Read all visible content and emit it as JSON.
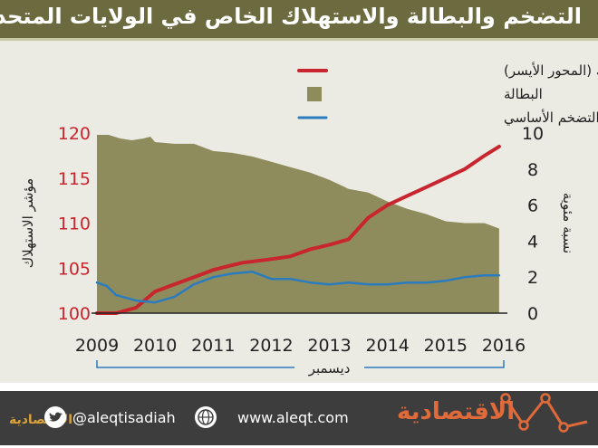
{
  "title": "التضخم والبطالة والاستهلاك الخاص في الولايات المتحدة",
  "footer": {
    "twitter": "@aleqtisadiah",
    "website": "www.aleqt.com",
    "brand": "الاقتصادية",
    "brand_small": "الاقتصادية"
  },
  "chart_data": {
    "type": "line",
    "x_axis": {
      "ticks": [
        "2009",
        "2010",
        "2011",
        "2012",
        "2013",
        "2014",
        "2015",
        "2016"
      ],
      "range": [
        2009,
        2016
      ],
      "sublabel": "ديسمبر"
    },
    "y_left": {
      "label": "مؤشر الاستهلاك",
      "range": [
        100,
        120
      ],
      "ticks": [
        "100",
        "105",
        "110",
        "115",
        "120"
      ]
    },
    "y_right": {
      "label": "نسبة مئوية",
      "range": [
        0,
        10
      ],
      "ticks": [
        "0",
        "2",
        "4",
        "6",
        "8",
        "10"
      ]
    },
    "legend_position": "top-right",
    "grid": false,
    "series": [
      {
        "name": "الاستهلاك (المحور الأيسر)",
        "kind": "line",
        "axis": "left",
        "color": "#c8252f",
        "x": [
          2009.0,
          2009.33,
          2009.67,
          2010.0,
          2010.33,
          2010.67,
          2011.0,
          2011.5,
          2012.0,
          2012.33,
          2012.67,
          2013.0,
          2013.33,
          2013.67,
          2014.0,
          2014.33,
          2014.67,
          2015.0,
          2015.33,
          2015.67,
          2015.92
        ],
        "values": [
          100.0,
          100.0,
          100.6,
          102.4,
          103.2,
          104.0,
          104.8,
          105.6,
          106.0,
          106.3,
          107.1,
          107.6,
          108.2,
          110.6,
          112.0,
          113.0,
          114.0,
          115.0,
          116.0,
          117.5,
          118.5
        ]
      },
      {
        "name": "البطالة",
        "kind": "area",
        "axis": "right",
        "color": "#8e8c5c",
        "x": [
          2009.0,
          2009.2,
          2009.4,
          2009.6,
          2009.8,
          2009.92,
          2010.0,
          2010.33,
          2010.67,
          2011.0,
          2011.33,
          2011.67,
          2012.0,
          2012.33,
          2012.67,
          2013.0,
          2013.33,
          2013.67,
          2014.0,
          2014.33,
          2014.67,
          2015.0,
          2015.33,
          2015.67,
          2015.92
        ],
        "values": [
          9.9,
          9.9,
          9.7,
          9.6,
          9.7,
          9.8,
          9.5,
          9.4,
          9.4,
          9.0,
          8.9,
          8.7,
          8.4,
          8.1,
          7.8,
          7.4,
          6.9,
          6.7,
          6.2,
          5.8,
          5.5,
          5.1,
          5.0,
          5.0,
          4.7
        ]
      },
      {
        "name": "التضخم الأساسي",
        "kind": "line",
        "axis": "right",
        "color": "#2b7bbf",
        "x": [
          2009.0,
          2009.17,
          2009.33,
          2009.67,
          2010.0,
          2010.33,
          2010.67,
          2011.0,
          2011.33,
          2011.67,
          2012.0,
          2012.33,
          2012.67,
          2013.0,
          2013.33,
          2013.67,
          2014.0,
          2014.33,
          2014.67,
          2015.0,
          2015.33,
          2015.67,
          2015.92
        ],
        "values": [
          1.7,
          1.5,
          1.0,
          0.7,
          0.6,
          0.9,
          1.6,
          2.0,
          2.2,
          2.3,
          1.9,
          1.9,
          1.7,
          1.6,
          1.7,
          1.6,
          1.6,
          1.7,
          1.7,
          1.8,
          2.0,
          2.1,
          2.1
        ]
      }
    ]
  }
}
